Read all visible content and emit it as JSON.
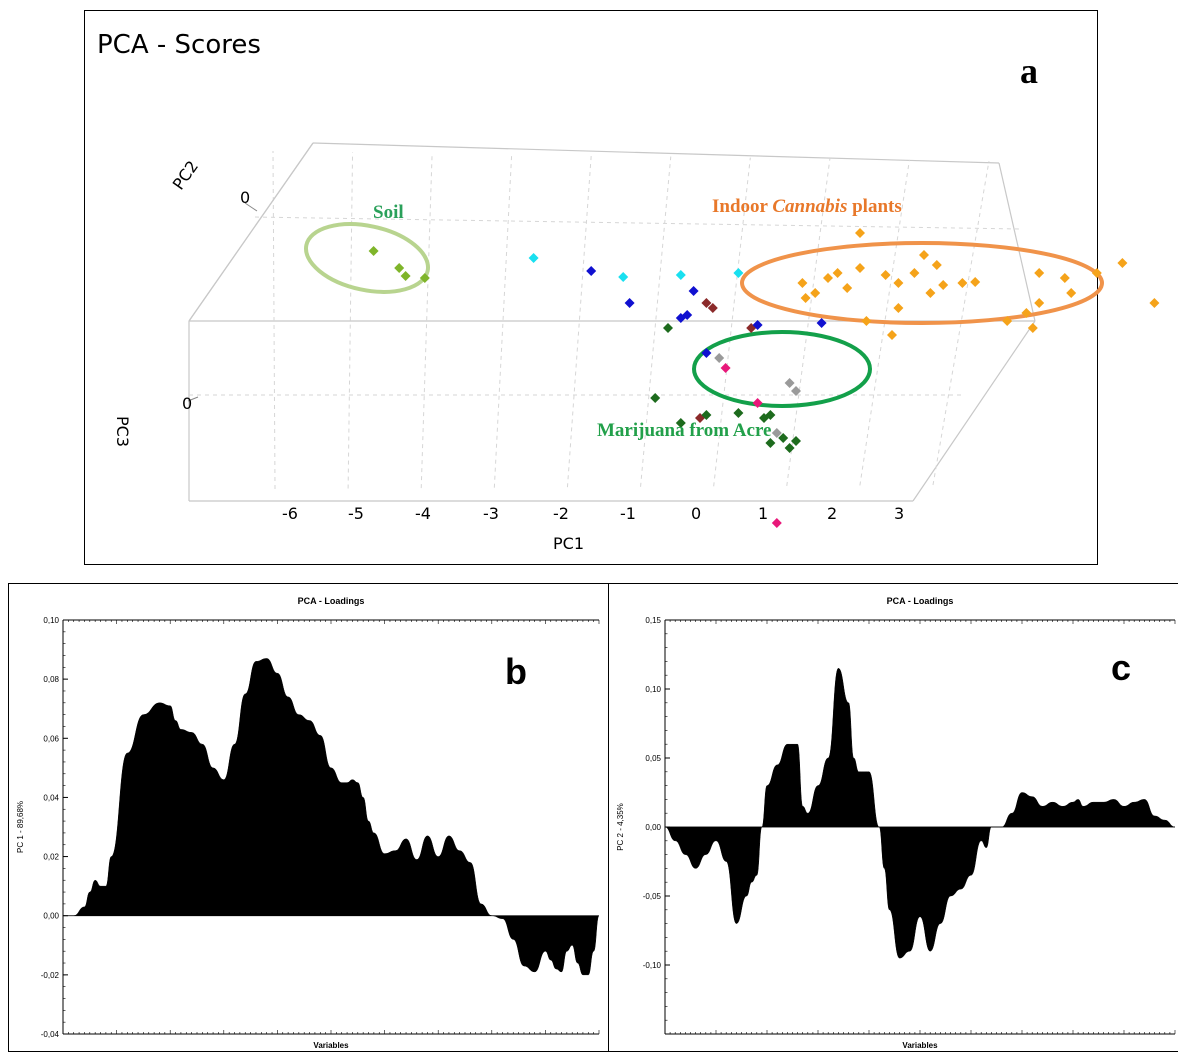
{
  "chart_data": [
    {
      "type": "scatter",
      "panel": "a",
      "title": "PCA - Scores",
      "xlabel": "PC1",
      "ylabel": "PC2",
      "zlabel": "PC3",
      "x_ticks": [
        "-6",
        "-5",
        "-4",
        "-3",
        "-2",
        "-1",
        "0",
        "1",
        "2",
        "3"
      ],
      "pc2_tick": "0",
      "pc3_tick": "0",
      "annotations": {
        "soil": "Soil",
        "indoor_prefix": "Indoor ",
        "indoor_italic": "Cannabis",
        "indoor_suffix": " plants",
        "acre": "Marijuana from Acre"
      },
      "colors": {
        "soil": "#7fb52a",
        "indoor": "#f5a31a",
        "acre": "#1d6b1d",
        "blue": "#1010d0",
        "cyan": "#19e0f0",
        "brown": "#8b2a2a",
        "gray": "#9a9a9a",
        "pink": "#e8187a",
        "soil_ellipse": "#b8d48f",
        "indoor_ellipse": "#f0934a",
        "acre_ellipse": "#13a04a",
        "soil_text": "#2aa05a",
        "indoor_text": "#e8782a",
        "acre_text": "#22a04a"
      },
      "points": [
        {
          "pc1": -5.1,
          "pc2": 0.62,
          "pc3": 0,
          "group": "soil"
        },
        {
          "pc1": -4.7,
          "pc2": 0.45,
          "pc3": 0,
          "group": "soil"
        },
        {
          "pc1": -4.6,
          "pc2": 0.37,
          "pc3": 0,
          "group": "soil"
        },
        {
          "pc1": -4.3,
          "pc2": 0.35,
          "pc3": 0,
          "group": "soil"
        },
        {
          "pc1": -2.6,
          "pc2": 0.55,
          "pc3": 0,
          "group": "cyan"
        },
        {
          "pc1": -1.7,
          "pc2": 0.42,
          "pc3": 0,
          "group": "blue"
        },
        {
          "pc1": -1.2,
          "pc2": 0.36,
          "pc3": 0,
          "group": "cyan"
        },
        {
          "pc1": -1.1,
          "pc2": 0.1,
          "pc3": 0,
          "group": "blue"
        },
        {
          "pc1": -0.5,
          "pc2": -0.15,
          "pc3": 0,
          "group": "acre"
        },
        {
          "pc1": -0.3,
          "pc2": 0.38,
          "pc3": 0,
          "group": "cyan"
        },
        {
          "pc1": -0.1,
          "pc2": 0.22,
          "pc3": 0,
          "group": "blue"
        },
        {
          "pc1": -0.2,
          "pc2": -0.02,
          "pc3": 0,
          "group": "blue"
        },
        {
          "pc1": -0.3,
          "pc2": -0.05,
          "pc3": 0,
          "group": "blue"
        },
        {
          "pc1": 0.1,
          "pc2": 0.1,
          "pc3": 0,
          "group": "brown"
        },
        {
          "pc1": 0.2,
          "pc2": 0.05,
          "pc3": 0,
          "group": "brown"
        },
        {
          "pc1": 0.6,
          "pc2": 0.4,
          "pc3": 0,
          "group": "cyan"
        },
        {
          "pc1": 0.8,
          "pc2": -0.15,
          "pc3": 0,
          "group": "brown"
        },
        {
          "pc1": 0.9,
          "pc2": -0.12,
          "pc3": 0,
          "group": "blue"
        },
        {
          "pc1": 0.1,
          "pc2": -0.4,
          "pc3": 0,
          "group": "blue"
        },
        {
          "pc1": 0.3,
          "pc2": -0.45,
          "pc3": 0,
          "group": "gray"
        },
        {
          "pc1": 0.4,
          "pc2": -0.55,
          "pc3": 0,
          "group": "pink"
        },
        {
          "pc1": 1.4,
          "pc2": -0.7,
          "pc3": 0,
          "group": "gray"
        },
        {
          "pc1": 1.5,
          "pc2": -0.78,
          "pc3": 0,
          "group": "gray"
        },
        {
          "pc1": 0.9,
          "pc2": -0.9,
          "pc3": 0,
          "group": "pink"
        },
        {
          "pc1": 1.9,
          "pc2": -0.1,
          "pc3": 0,
          "group": "blue"
        },
        {
          "pc1": -0.7,
          "pc2": -0.85,
          "pc3": 0,
          "group": "acre"
        },
        {
          "pc1": -0.3,
          "pc2": -1.1,
          "pc3": 0,
          "group": "acre"
        },
        {
          "pc1": 0.0,
          "pc2": -1.05,
          "pc3": 0,
          "group": "brown"
        },
        {
          "pc1": 0.1,
          "pc2": -1.02,
          "pc3": 0,
          "group": "acre"
        },
        {
          "pc1": 0.6,
          "pc2": -1.0,
          "pc3": 0,
          "group": "acre"
        },
        {
          "pc1": 1.0,
          "pc2": -1.05,
          "pc3": 0,
          "group": "acre"
        },
        {
          "pc1": 1.1,
          "pc2": -1.02,
          "pc3": 0,
          "group": "acre"
        },
        {
          "pc1": 1.2,
          "pc2": -1.2,
          "pc3": 0,
          "group": "gray"
        },
        {
          "pc1": 1.3,
          "pc2": -1.25,
          "pc3": 0,
          "group": "acre"
        },
        {
          "pc1": 1.1,
          "pc2": -1.3,
          "pc3": 0,
          "group": "acre"
        },
        {
          "pc1": 1.4,
          "pc2": -1.35,
          "pc3": 0,
          "group": "acre"
        },
        {
          "pc1": 1.5,
          "pc2": -1.28,
          "pc3": 0,
          "group": "acre"
        },
        {
          "pc1": 1.2,
          "pc2": -2.1,
          "pc3": 0,
          "group": "pink"
        },
        {
          "pc1": 2.5,
          "pc2": 0.45,
          "pc3": 0,
          "group": "indoor"
        },
        {
          "pc1": 2.0,
          "pc2": 0.35,
          "pc3": 0,
          "group": "indoor"
        },
        {
          "pc1": 2.15,
          "pc2": 0.4,
          "pc3": 0,
          "group": "indoor"
        },
        {
          "pc1": 2.3,
          "pc2": 0.25,
          "pc3": 0,
          "group": "indoor"
        },
        {
          "pc1": 1.6,
          "pc2": 0.3,
          "pc3": 0,
          "group": "indoor"
        },
        {
          "pc1": 1.8,
          "pc2": 0.2,
          "pc3": 0,
          "group": "indoor"
        },
        {
          "pc1": 1.65,
          "pc2": 0.15,
          "pc3": 0,
          "group": "indoor"
        },
        {
          "pc1": 2.9,
          "pc2": 0.38,
          "pc3": 0,
          "group": "indoor"
        },
        {
          "pc1": 3.1,
          "pc2": 0.3,
          "pc3": 0,
          "group": "indoor"
        },
        {
          "pc1": 3.35,
          "pc2": 0.4,
          "pc3": 0,
          "group": "indoor"
        },
        {
          "pc1": 3.5,
          "pc2": 0.58,
          "pc3": 0,
          "group": "indoor"
        },
        {
          "pc1": 3.7,
          "pc2": 0.48,
          "pc3": 0,
          "group": "indoor"
        },
        {
          "pc1": 3.8,
          "pc2": 0.28,
          "pc3": 0,
          "group": "indoor"
        },
        {
          "pc1": 3.6,
          "pc2": 0.2,
          "pc3": 0,
          "group": "indoor"
        },
        {
          "pc1": 4.1,
          "pc2": 0.3,
          "pc3": 0,
          "group": "indoor"
        },
        {
          "pc1": 4.3,
          "pc2": 0.31,
          "pc3": 0,
          "group": "indoor"
        },
        {
          "pc1": 3.1,
          "pc2": 0.05,
          "pc3": 0,
          "group": "indoor"
        },
        {
          "pc1": 2.6,
          "pc2": -0.08,
          "pc3": 0,
          "group": "indoor"
        },
        {
          "pc1": 3.0,
          "pc2": -0.22,
          "pc3": 0,
          "group": "indoor"
        },
        {
          "pc1": 4.8,
          "pc2": -0.08,
          "pc3": 0,
          "group": "indoor"
        },
        {
          "pc1": 5.1,
          "pc2": 0.0,
          "pc3": 0,
          "group": "indoor"
        },
        {
          "pc1": 5.3,
          "pc2": 0.1,
          "pc3": 0,
          "group": "indoor"
        },
        {
          "pc1": 5.7,
          "pc2": 0.35,
          "pc3": 0,
          "group": "indoor"
        },
        {
          "pc1": 5.3,
          "pc2": 0.4,
          "pc3": 0,
          "group": "indoor"
        },
        {
          "pc1": 5.8,
          "pc2": 0.2,
          "pc3": 0,
          "group": "indoor"
        },
        {
          "pc1": 6.2,
          "pc2": 0.4,
          "pc3": 0,
          "group": "indoor"
        },
        {
          "pc1": 6.6,
          "pc2": 0.5,
          "pc3": 0,
          "group": "indoor"
        },
        {
          "pc1": 5.2,
          "pc2": -0.15,
          "pc3": 0,
          "group": "indoor"
        },
        {
          "pc1": 7.1,
          "pc2": 0.1,
          "pc3": 0,
          "group": "indoor"
        },
        {
          "pc1": 2.5,
          "pc2": 0.8,
          "pc3": 0,
          "group": "indoor"
        }
      ]
    },
    {
      "type": "area",
      "panel": "b",
      "title": "PCA - Loadings",
      "xlabel": "Variables",
      "ylabel": "PC 1 - 89,68%",
      "ylim": [
        -0.04,
        0.1
      ],
      "y_ticks": [
        "-0,04",
        "-0,02",
        "0,00",
        "0,02",
        "0,04",
        "0,06",
        "0,08",
        "0,10"
      ],
      "x": [
        0,
        2,
        4,
        5,
        6,
        7,
        8,
        9,
        12,
        15,
        18,
        20,
        21,
        22,
        24,
        26,
        28,
        30,
        32,
        34,
        36,
        38,
        40,
        42,
        44,
        46,
        48,
        50,
        52,
        53,
        54,
        55,
        56,
        57,
        58,
        60,
        62,
        64,
        66,
        68,
        70,
        72,
        74,
        76,
        78,
        80,
        82,
        84,
        86,
        88,
        90,
        91,
        92,
        93,
        94,
        95,
        96,
        97,
        98,
        99,
        100
      ],
      "values": [
        0.0,
        0.0,
        0.003,
        0.008,
        0.012,
        0.01,
        0.01,
        0.02,
        0.055,
        0.068,
        0.072,
        0.071,
        0.066,
        0.063,
        0.062,
        0.058,
        0.05,
        0.046,
        0.058,
        0.075,
        0.086,
        0.087,
        0.082,
        0.074,
        0.068,
        0.066,
        0.061,
        0.05,
        0.045,
        0.045,
        0.046,
        0.045,
        0.04,
        0.032,
        0.028,
        0.021,
        0.022,
        0.026,
        0.019,
        0.027,
        0.02,
        0.027,
        0.022,
        0.018,
        0.004,
        0.0,
        -0.001,
        -0.008,
        -0.017,
        -0.019,
        -0.012,
        -0.015,
        -0.018,
        -0.019,
        -0.012,
        -0.01,
        -0.016,
        -0.02,
        -0.02,
        -0.012,
        0.0
      ]
    },
    {
      "type": "area",
      "panel": "c",
      "title": "PCA - Loadings",
      "xlabel": "Variables",
      "ylabel": "PC 2 - 4,35%",
      "ylim": [
        -0.15,
        0.15
      ],
      "y_ticks": [
        "-0,10",
        "-0,05",
        "0,00",
        "0,05",
        "0,10",
        "0,15"
      ],
      "x": [
        0,
        2,
        4,
        6,
        8,
        10,
        12,
        14,
        16,
        17,
        18,
        19,
        20,
        22,
        24,
        26,
        27,
        28,
        30,
        32,
        34,
        36,
        37,
        38,
        40,
        42,
        43,
        44,
        46,
        48,
        50,
        52,
        54,
        56,
        58,
        60,
        62,
        63,
        64,
        66,
        68,
        70,
        72,
        74,
        76,
        78,
        80,
        81,
        82,
        84,
        86,
        88,
        90,
        92,
        94,
        96,
        98,
        100
      ],
      "values": [
        0.0,
        -0.01,
        -0.02,
        -0.03,
        -0.02,
        -0.01,
        -0.025,
        -0.07,
        -0.05,
        -0.04,
        -0.035,
        0.0,
        0.03,
        0.045,
        0.06,
        0.06,
        0.015,
        0.01,
        0.03,
        0.05,
        0.115,
        0.09,
        0.05,
        0.04,
        0.04,
        0.0,
        -0.03,
        -0.06,
        -0.095,
        -0.09,
        -0.065,
        -0.09,
        -0.07,
        -0.05,
        -0.045,
        -0.035,
        -0.01,
        -0.015,
        0.0,
        0.0,
        0.01,
        0.025,
        0.022,
        0.015,
        0.018,
        0.015,
        0.018,
        0.02,
        0.015,
        0.018,
        0.018,
        0.02,
        0.015,
        0.018,
        0.02,
        0.008,
        0.005,
        0.0
      ]
    }
  ],
  "panel_labels": {
    "a": "a",
    "b": "b",
    "c": "c"
  }
}
